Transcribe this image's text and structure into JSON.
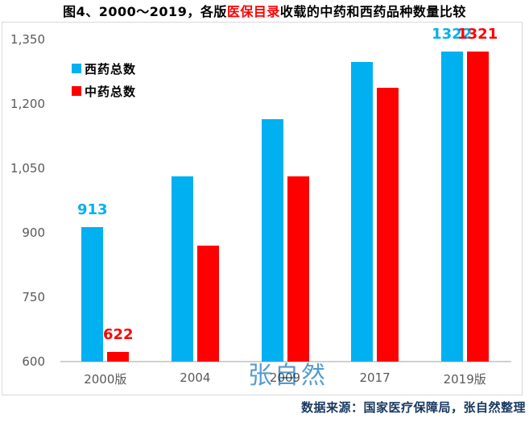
{
  "title": {
    "prefix": "图4、2000～2019，各版",
    "highlight": "医保目录",
    "suffix": "收载的中药和西药品种数量比较"
  },
  "chart_data": {
    "type": "bar",
    "title": "图4、2000～2019，各版医保目录收载的中药和西药品种数量比较",
    "categories": [
      "2000版",
      "2004",
      "2009",
      "2017",
      "2019版"
    ],
    "series": [
      {
        "name": "西药总数",
        "color": "#00B0F0",
        "values": [
          913,
          1031,
          1164,
          1297,
          1322
        ],
        "data_labels": [
          "913",
          "",
          "",
          "",
          "1322"
        ]
      },
      {
        "name": "中药总数",
        "color": "#FF0000",
        "values": [
          622,
          870,
          1032,
          1238,
          1321
        ],
        "data_labels": [
          "622",
          "",
          "",
          "",
          "1321"
        ]
      }
    ],
    "ylim": [
      600,
      1350
    ],
    "yticks": [
      "1,350",
      "1,200",
      "1,050",
      "900",
      "750",
      "600"
    ],
    "ytick_values": [
      1350,
      1200,
      1050,
      900,
      750,
      600
    ],
    "grid": false,
    "legend_position": "top-left"
  },
  "watermark": {
    "text": "张自然",
    "color": "#3D8EC5"
  },
  "footer": {
    "label": "数据来源：国家医疗保障局，张自然整理",
    "color": "#17375E"
  },
  "axis": {
    "text_color": "#595959"
  }
}
